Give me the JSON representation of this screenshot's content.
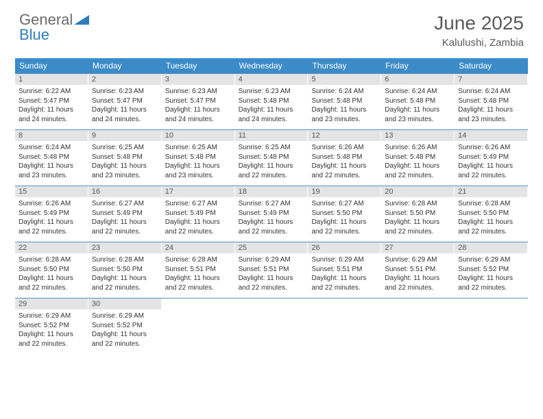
{
  "logo": {
    "text_general": "General",
    "text_blue": "Blue"
  },
  "header": {
    "month": "June 2025",
    "location": "Kalulushi, Zambia"
  },
  "colors": {
    "header_bg": "#3b8bc8",
    "header_text": "#ffffff",
    "daynum_bg": "#e4e4e4",
    "week_border": "#5a8fb8",
    "logo_gray": "#6a6a6a",
    "logo_blue": "#2f7bbf",
    "title_gray": "#5a5a5a"
  },
  "weekdays": [
    "Sunday",
    "Monday",
    "Tuesday",
    "Wednesday",
    "Thursday",
    "Friday",
    "Saturday"
  ],
  "days": [
    {
      "n": "1",
      "sunrise": "6:22 AM",
      "sunset": "5:47 PM",
      "daylight": "11 hours and 24 minutes."
    },
    {
      "n": "2",
      "sunrise": "6:23 AM",
      "sunset": "5:47 PM",
      "daylight": "11 hours and 24 minutes."
    },
    {
      "n": "3",
      "sunrise": "6:23 AM",
      "sunset": "5:47 PM",
      "daylight": "11 hours and 24 minutes."
    },
    {
      "n": "4",
      "sunrise": "6:23 AM",
      "sunset": "5:48 PM",
      "daylight": "11 hours and 24 minutes."
    },
    {
      "n": "5",
      "sunrise": "6:24 AM",
      "sunset": "5:48 PM",
      "daylight": "11 hours and 23 minutes."
    },
    {
      "n": "6",
      "sunrise": "6:24 AM",
      "sunset": "5:48 PM",
      "daylight": "11 hours and 23 minutes."
    },
    {
      "n": "7",
      "sunrise": "6:24 AM",
      "sunset": "5:48 PM",
      "daylight": "11 hours and 23 minutes."
    },
    {
      "n": "8",
      "sunrise": "6:24 AM",
      "sunset": "5:48 PM",
      "daylight": "11 hours and 23 minutes."
    },
    {
      "n": "9",
      "sunrise": "6:25 AM",
      "sunset": "5:48 PM",
      "daylight": "11 hours and 23 minutes."
    },
    {
      "n": "10",
      "sunrise": "6:25 AM",
      "sunset": "5:48 PM",
      "daylight": "11 hours and 23 minutes."
    },
    {
      "n": "11",
      "sunrise": "6:25 AM",
      "sunset": "5:48 PM",
      "daylight": "11 hours and 22 minutes."
    },
    {
      "n": "12",
      "sunrise": "6:26 AM",
      "sunset": "5:48 PM",
      "daylight": "11 hours and 22 minutes."
    },
    {
      "n": "13",
      "sunrise": "6:26 AM",
      "sunset": "5:48 PM",
      "daylight": "11 hours and 22 minutes."
    },
    {
      "n": "14",
      "sunrise": "6:26 AM",
      "sunset": "5:49 PM",
      "daylight": "11 hours and 22 minutes."
    },
    {
      "n": "15",
      "sunrise": "6:26 AM",
      "sunset": "5:49 PM",
      "daylight": "11 hours and 22 minutes."
    },
    {
      "n": "16",
      "sunrise": "6:27 AM",
      "sunset": "5:49 PM",
      "daylight": "11 hours and 22 minutes."
    },
    {
      "n": "17",
      "sunrise": "6:27 AM",
      "sunset": "5:49 PM",
      "daylight": "11 hours and 22 minutes."
    },
    {
      "n": "18",
      "sunrise": "6:27 AM",
      "sunset": "5:49 PM",
      "daylight": "11 hours and 22 minutes."
    },
    {
      "n": "19",
      "sunrise": "6:27 AM",
      "sunset": "5:50 PM",
      "daylight": "11 hours and 22 minutes."
    },
    {
      "n": "20",
      "sunrise": "6:28 AM",
      "sunset": "5:50 PM",
      "daylight": "11 hours and 22 minutes."
    },
    {
      "n": "21",
      "sunrise": "6:28 AM",
      "sunset": "5:50 PM",
      "daylight": "11 hours and 22 minutes."
    },
    {
      "n": "22",
      "sunrise": "6:28 AM",
      "sunset": "5:50 PM",
      "daylight": "11 hours and 22 minutes."
    },
    {
      "n": "23",
      "sunrise": "6:28 AM",
      "sunset": "5:50 PM",
      "daylight": "11 hours and 22 minutes."
    },
    {
      "n": "24",
      "sunrise": "6:28 AM",
      "sunset": "5:51 PM",
      "daylight": "11 hours and 22 minutes."
    },
    {
      "n": "25",
      "sunrise": "6:29 AM",
      "sunset": "5:51 PM",
      "daylight": "11 hours and 22 minutes."
    },
    {
      "n": "26",
      "sunrise": "6:29 AM",
      "sunset": "5:51 PM",
      "daylight": "11 hours and 22 minutes."
    },
    {
      "n": "27",
      "sunrise": "6:29 AM",
      "sunset": "5:51 PM",
      "daylight": "11 hours and 22 minutes."
    },
    {
      "n": "28",
      "sunrise": "6:29 AM",
      "sunset": "5:52 PM",
      "daylight": "11 hours and 22 minutes."
    },
    {
      "n": "29",
      "sunrise": "6:29 AM",
      "sunset": "5:52 PM",
      "daylight": "11 hours and 22 minutes."
    },
    {
      "n": "30",
      "sunrise": "6:29 AM",
      "sunset": "5:52 PM",
      "daylight": "11 hours and 22 minutes."
    }
  ],
  "labels": {
    "sunrise": "Sunrise:",
    "sunset": "Sunset:",
    "daylight": "Daylight:"
  }
}
